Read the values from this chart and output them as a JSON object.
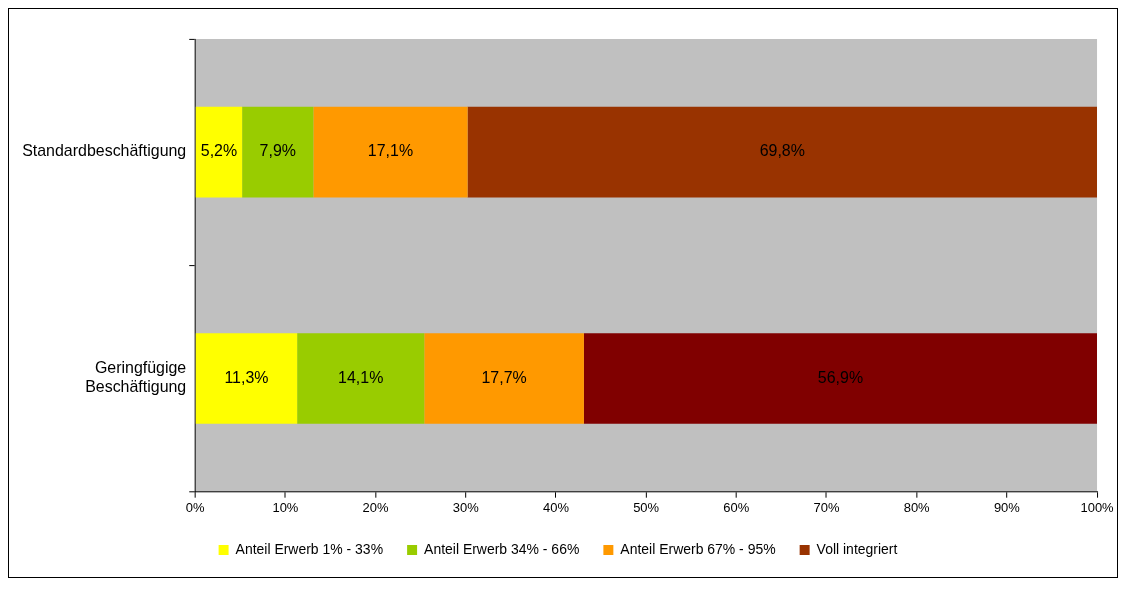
{
  "chart_data": {
    "type": "bar",
    "orientation": "horizontal",
    "stacked": true,
    "categories": [
      "Standardbeschäftigung",
      "Geringfügige Beschäftigung"
    ],
    "series": [
      {
        "name": "Anteil Erwerb 1% - 33%",
        "color": "#ffff00",
        "values": [
          5.2,
          11.3
        ],
        "value_labels": [
          "5,2%",
          "11,3%"
        ]
      },
      {
        "name": "Anteil Erwerb 34% - 66%",
        "color": "#99cc00",
        "values": [
          7.9,
          14.1
        ],
        "value_labels": [
          "7,9%",
          "14,1%"
        ]
      },
      {
        "name": "Anteil Erwerb 67% - 95%",
        "color": "#ff9900",
        "values": [
          17.1,
          17.7
        ],
        "value_labels": [
          "17,1%",
          "17,7%"
        ]
      },
      {
        "name": "Voll integriert",
        "color": "#993300",
        "colors": [
          "#993300",
          "#800000"
        ],
        "values": [
          69.8,
          56.9
        ],
        "value_labels": [
          "69,8%",
          "56,9%"
        ]
      }
    ],
    "xlim": [
      0,
      100
    ],
    "xticks": [
      {
        "value": 0,
        "label": "0%"
      },
      {
        "value": 10,
        "label": "10%"
      },
      {
        "value": 20,
        "label": "20%"
      },
      {
        "value": 30,
        "label": "30%"
      },
      {
        "value": 40,
        "label": "40%"
      },
      {
        "value": 50,
        "label": "50%"
      },
      {
        "value": 60,
        "label": "60%"
      },
      {
        "value": 70,
        "label": "70%"
      },
      {
        "value": 80,
        "label": "80%"
      },
      {
        "value": 90,
        "label": "90%"
      },
      {
        "value": 100,
        "label": "100%"
      }
    ],
    "grid": false,
    "legend": "bottom"
  }
}
